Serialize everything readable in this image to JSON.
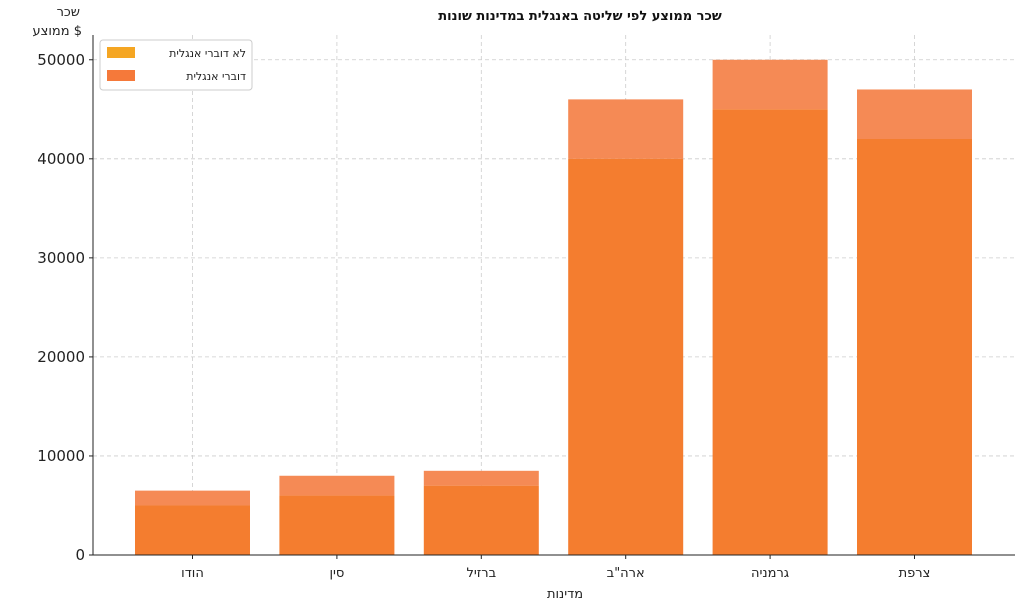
{
  "chart_data": {
    "type": "bar",
    "title": "שכר ממוצע לפי שליטה באנגלית במדינות שונות",
    "xlabel": "מדינות",
    "ylabel_line1": "שכר",
    "ylabel_line2": "ממוצע $",
    "categories": [
      "הודו",
      "סין",
      "ברזיל",
      "ארה\"ב",
      "גרמניה",
      "צרפת"
    ],
    "series": [
      {
        "name": "לא דוברי אנגלית",
        "values": [
          5000,
          6000,
          7000,
          40000,
          45000,
          42000
        ],
        "color": "#F5A623"
      },
      {
        "name": "דוברי אנגלית",
        "values": [
          6500,
          8000,
          8500,
          46000,
          50000,
          47000
        ],
        "color": "#F5793A"
      }
    ],
    "ylim": [
      0,
      52500
    ],
    "yticks": [
      0,
      10000,
      20000,
      30000,
      40000,
      50000
    ],
    "grid": true,
    "legend_position": "top-left",
    "overlay_colors": {
      "under": "#F47D2F",
      "over": "#F58A55"
    }
  }
}
